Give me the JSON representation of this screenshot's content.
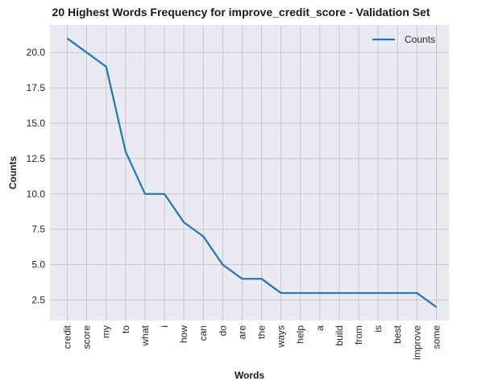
{
  "chart_data": {
    "type": "line",
    "title": "20 Highest Words Frequency for improve_credit_score - Validation Set",
    "xlabel": "Words",
    "ylabel": "Counts",
    "categories": [
      "credit",
      "score",
      "my",
      "to",
      "what",
      "i",
      "how",
      "can",
      "do",
      "are",
      "the",
      "ways",
      "help",
      "a",
      "build",
      "from",
      "is",
      "best",
      "improve",
      "some"
    ],
    "series": [
      {
        "name": "Counts",
        "values": [
          21,
          20,
          19,
          13,
          10,
          10,
          8,
          7,
          5,
          4,
          4,
          3,
          3,
          3,
          3,
          3,
          3,
          3,
          3,
          2
        ]
      }
    ],
    "yticks": [
      "2.5",
      "5.0",
      "7.5",
      "10.0",
      "12.5",
      "15.0",
      "17.5",
      "20.0"
    ],
    "ylim": [
      1.05,
      21.95
    ],
    "grid": true,
    "legend_position": "top-right",
    "colors": {
      "line": "#1f77b4",
      "background": "#eaeaf2",
      "grid": "#bfbfbf"
    }
  }
}
